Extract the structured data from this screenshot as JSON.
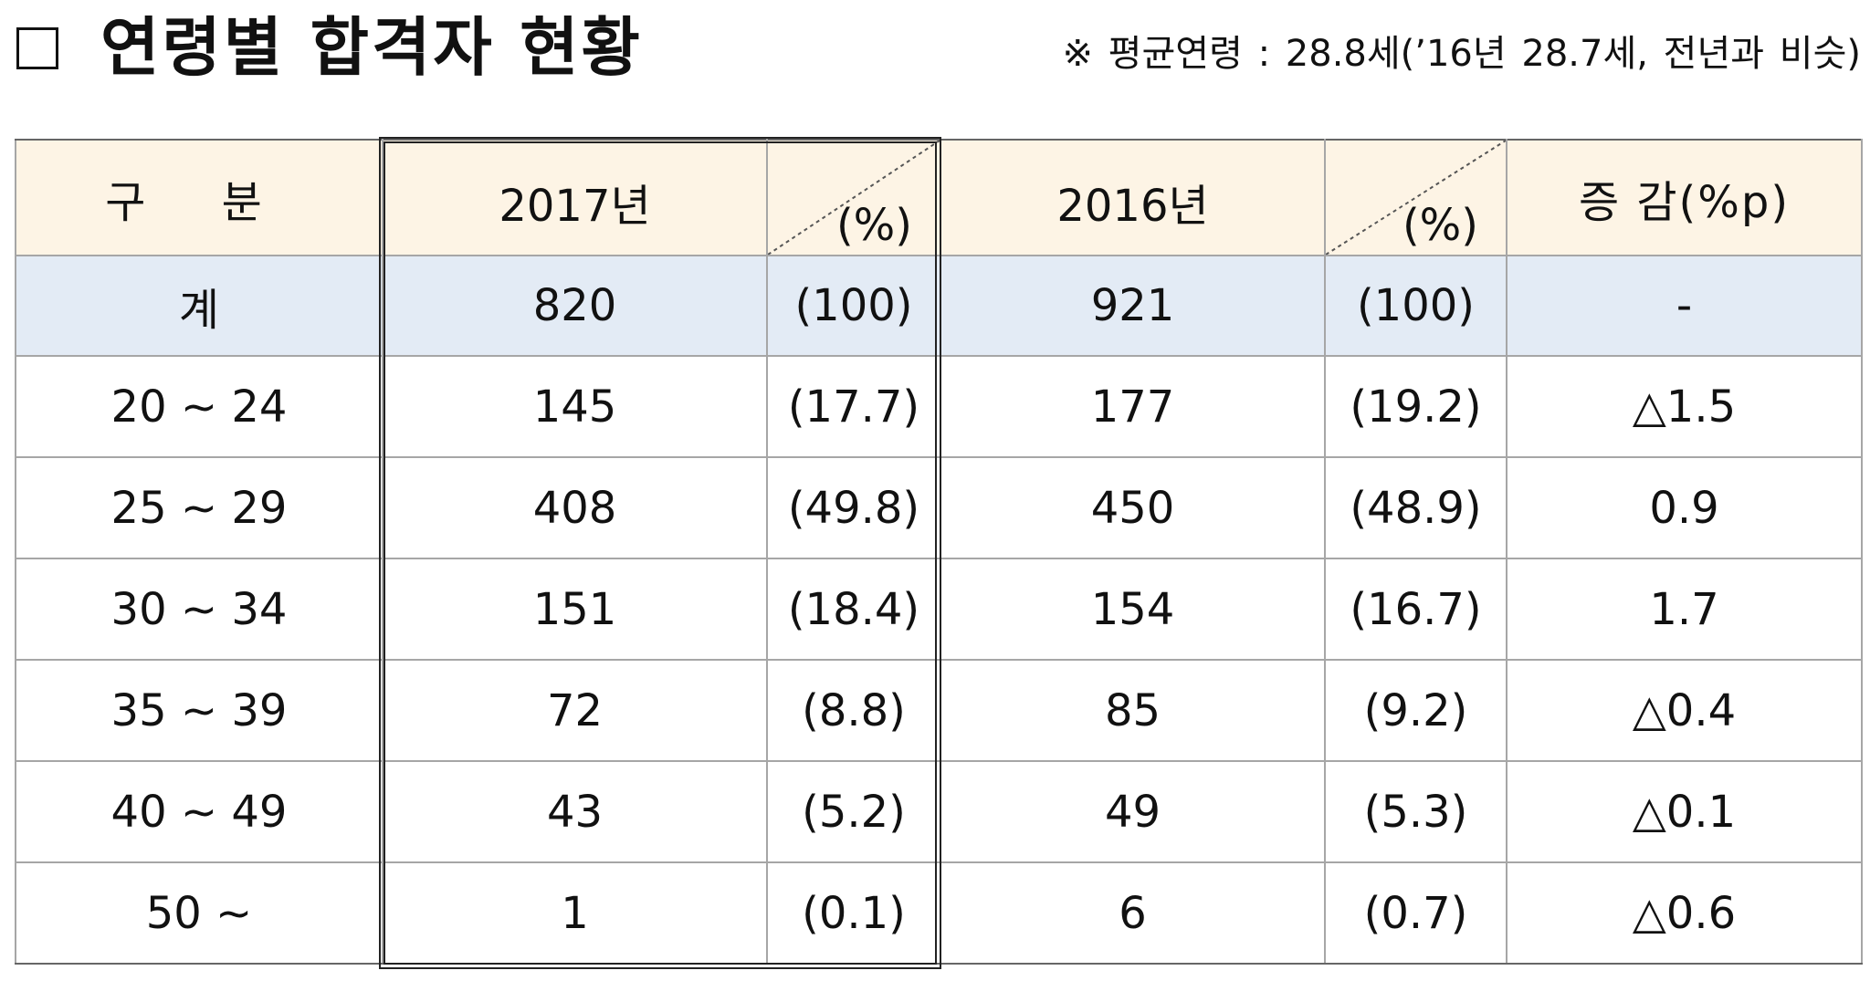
{
  "title": {
    "text": "연령별 합격자 현황",
    "note": "※ 평균연령 : 28.8세(’16년 28.7세, 전년과 비슷)"
  },
  "table": {
    "headers": {
      "category": "구 분",
      "year_2017": "2017년",
      "year_2016": "2016년",
      "pct_unit": "(%)",
      "diff": "증 감(%p)"
    },
    "total": {
      "label": "계",
      "count_2017": "820",
      "pct_2017": "(100)",
      "count_2016": "921",
      "pct_2016": "(100)",
      "diff": "-"
    },
    "rows": [
      {
        "age": "20 ~ 24",
        "count_2017": "145",
        "pct_2017": "(17.7)",
        "count_2016": "177",
        "pct_2016": "(19.2)",
        "diff": "△1.5"
      },
      {
        "age": "25 ~ 29",
        "count_2017": "408",
        "pct_2017": "(49.8)",
        "count_2016": "450",
        "pct_2016": "(48.9)",
        "diff": "0.9"
      },
      {
        "age": "30 ~ 34",
        "count_2017": "151",
        "pct_2017": "(18.4)",
        "count_2016": "154",
        "pct_2016": "(16.7)",
        "diff": "1.7"
      },
      {
        "age": "35 ~ 39",
        "count_2017": "72",
        "pct_2017": "(8.8)",
        "count_2016": "85",
        "pct_2016": "(9.2)",
        "diff": "△0.4"
      },
      {
        "age": "40 ~ 49",
        "count_2017": "43",
        "pct_2017": "(5.2)",
        "count_2016": "49",
        "pct_2016": "(5.3)",
        "diff": "△0.1"
      },
      {
        "age": "50 ~",
        "count_2017": "1",
        "pct_2017": "(0.1)",
        "count_2016": "6",
        "pct_2016": "(0.7)",
        "diff": "△0.6"
      }
    ]
  },
  "colors": {
    "header_background": "#fdf4e5",
    "total_row_background": "#e3ebf5",
    "grid_line": "#a6a6a6"
  }
}
